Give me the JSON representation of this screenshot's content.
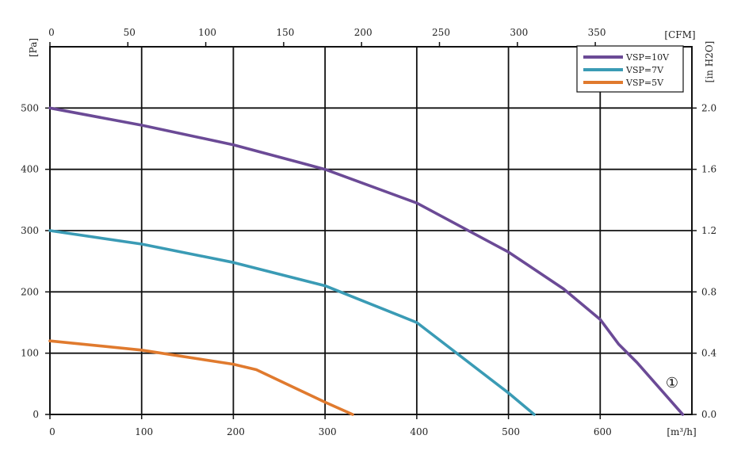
{
  "chart_data": {
    "type": "line",
    "x_bottom": {
      "unit": "[m³/h]",
      "range": [
        0,
        700
      ],
      "ticks": [
        "0",
        "100",
        "200",
        "300",
        "400",
        "500",
        "600"
      ]
    },
    "x_top": {
      "unit": "[CFM]",
      "range": [
        0,
        412
      ],
      "ticks": [
        "0",
        "50",
        "100",
        "150",
        "200",
        "250",
        "300",
        "350"
      ]
    },
    "y_left": {
      "unit": "[Pa]",
      "range": [
        0,
        600
      ],
      "ticks": [
        "0",
        "100",
        "200",
        "300",
        "400",
        "500"
      ]
    },
    "y_right": {
      "unit": "[in H2O]",
      "ticks": [
        "0.0",
        "0.4",
        "0.8",
        "1.2",
        "1.6",
        "2.0"
      ]
    },
    "grid": true,
    "legend_position": "top-right",
    "annotation": "①",
    "series": [
      {
        "name": "VSP=10V",
        "color": "#6b4a96",
        "x": [
          0,
          100,
          200,
          300,
          400,
          500,
          520,
          560,
          600,
          620,
          640,
          690
        ],
        "y": [
          500,
          472,
          440,
          400,
          345,
          265,
          245,
          205,
          155,
          115,
          85,
          0
        ]
      },
      {
        "name": "VSP=7V",
        "color": "#3a9bb5",
        "x": [
          0,
          100,
          200,
          300,
          400,
          500,
          528
        ],
        "y": [
          300,
          278,
          248,
          210,
          150,
          35,
          0
        ]
      },
      {
        "name": "VSP=5V",
        "color": "#e07a2e",
        "x": [
          0,
          100,
          200,
          225,
          300,
          330
        ],
        "y": [
          120,
          105,
          82,
          73,
          20,
          0
        ]
      }
    ]
  }
}
